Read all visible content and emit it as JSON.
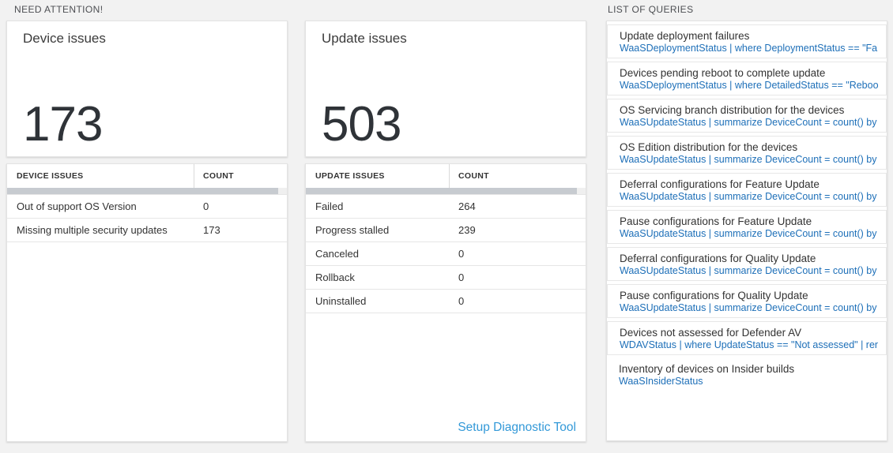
{
  "sections": {
    "need_attention_title": "NEED ATTENTION!",
    "queries_title": "LIST OF QUERIES"
  },
  "device_card": {
    "title": "Device issues",
    "count": "173"
  },
  "update_card": {
    "title": "Update issues",
    "count": "503"
  },
  "device_table": {
    "header_label": "DEVICE ISSUES",
    "header_count": "COUNT",
    "rows": [
      {
        "label": "Out of support OS Version",
        "count": "0"
      },
      {
        "label": "Missing multiple security updates",
        "count": "173"
      }
    ]
  },
  "update_table": {
    "header_label": "UPDATE ISSUES",
    "header_count": "COUNT",
    "rows": [
      {
        "label": "Failed",
        "count": "264"
      },
      {
        "label": "Progress stalled",
        "count": "239"
      },
      {
        "label": "Canceled",
        "count": "0"
      },
      {
        "label": "Rollback",
        "count": "0"
      },
      {
        "label": "Uninstalled",
        "count": "0"
      }
    ],
    "footer_link": "Setup Diagnostic Tool"
  },
  "queries": [
    {
      "title": "Update deployment failures",
      "query": "WaaSDeploymentStatus | where DeploymentStatus == \"Failed\" |..."
    },
    {
      "title": "Devices pending reboot to complete update",
      "query": "WaaSDeploymentStatus | where DetailedStatus == \"Reboot pend..."
    },
    {
      "title": "OS Servicing branch distribution for the devices",
      "query": "WaaSUpdateStatus | summarize DeviceCount = count() by OSSer..."
    },
    {
      "title": "OS Edition distribution for the devices",
      "query": "WaaSUpdateStatus | summarize DeviceCount = count() by OSEdit..."
    },
    {
      "title": "Deferral configurations for Feature Update",
      "query": "WaaSUpdateStatus | summarize DeviceCount = count() by Featur..."
    },
    {
      "title": "Pause configurations for Feature Update",
      "query": "WaaSUpdateStatus | summarize DeviceCount = count() by Featur..."
    },
    {
      "title": "Deferral configurations for Quality Update",
      "query": "WaaSUpdateStatus | summarize DeviceCount = count() by Qualit..."
    },
    {
      "title": "Pause configurations for Quality Update",
      "query": "WaaSUpdateStatus | summarize DeviceCount = count() by Qualit..."
    },
    {
      "title": "Devices not assessed for Defender AV",
      "query": "WDAVStatus | where UpdateStatus == \"Not assessed\" | render ta..."
    },
    {
      "title": "Inventory of devices on Insider builds",
      "query": "WaaSInsiderStatus"
    }
  ],
  "colors": {
    "link-blue": "#1d6fb8",
    "setup-blue": "#3399d8",
    "bg": "#f2f2f2",
    "number": "#2f3338",
    "thumb": "#c7cbd0"
  }
}
